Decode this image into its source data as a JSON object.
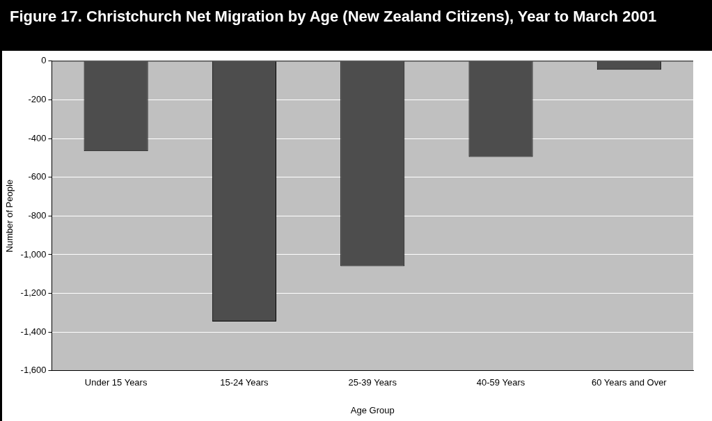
{
  "chart_data": {
    "type": "bar",
    "title": "Figure 17. Christchurch Net Migration by Age (New Zealand Citizens), Year to March 2001",
    "xlabel": "Age Group",
    "ylabel": "Number of People",
    "categories": [
      "Under 15 Years",
      "15-24 Years",
      "25-39 Years",
      "40-59 Years",
      "60 Years and Over"
    ],
    "values": [
      -465,
      -1345,
      -1060,
      -495,
      -45
    ],
    "color": "#4d4d4d",
    "ylim": [
      -1600,
      0
    ],
    "yticks": [
      {
        "value": -1600,
        "label": "-1,600"
      },
      {
        "value": -1400,
        "label": "-1,400"
      },
      {
        "value": -1200,
        "label": "-1,200"
      },
      {
        "value": -1000,
        "label": "-1,000"
      },
      -800,
      -600,
      -400,
      -200,
      0
    ],
    "grid": "y",
    "legend": false
  }
}
